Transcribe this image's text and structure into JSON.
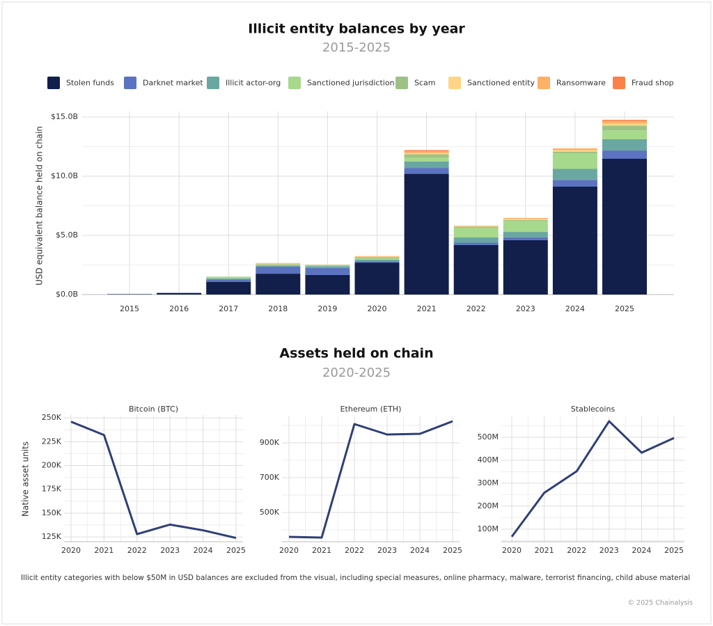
{
  "chart_data": [
    {
      "type": "bar",
      "stacked": true,
      "title": "Illicit entity balances by year",
      "subtitle": "2015-2025",
      "y_label": "USD equivalent balance held on chain",
      "categories": [
        "2015",
        "2016",
        "2017",
        "2018",
        "2019",
        "2020",
        "2021",
        "2022",
        "2023",
        "2024",
        "2025"
      ],
      "series": [
        {
          "name": "Stolen funds",
          "color": "#121f4b",
          "values": [
            0.03,
            0.12,
            1.06,
            1.76,
            1.65,
            2.7,
            10.2,
            4.18,
            4.59,
            9.12,
            11.47
          ]
        },
        {
          "name": "Darknet market",
          "color": "#5b73c0",
          "values": [
            0.01,
            0.03,
            0.2,
            0.6,
            0.6,
            0.1,
            0.5,
            0.2,
            0.25,
            0.55,
            0.7
          ]
        },
        {
          "name": "Illicit actor-org",
          "color": "#6aa7a0",
          "values": [
            0,
            0,
            0.1,
            0.1,
            0.15,
            0.15,
            0.55,
            0.45,
            0.45,
            0.95,
            0.95
          ]
        },
        {
          "name": "Sanctioned jurisdiction",
          "color": "#a6d98c",
          "values": [
            0,
            0,
            0.1,
            0.05,
            0.05,
            0.1,
            0.3,
            0.8,
            0.9,
            1.3,
            0.75
          ]
        },
        {
          "name": "Scam",
          "color": "#9cc384",
          "values": [
            0,
            0,
            0.05,
            0.05,
            0.05,
            0.1,
            0.3,
            0.1,
            0.1,
            0.15,
            0.4
          ]
        },
        {
          "name": "Sanctioned entity",
          "color": "#fdd585",
          "values": [
            0,
            0,
            0,
            0.05,
            0.03,
            0.05,
            0.1,
            0.05,
            0.1,
            0.13,
            0.2
          ]
        },
        {
          "name": "Ransomware",
          "color": "#fcb068",
          "values": [
            0,
            0,
            0,
            0.05,
            0,
            0.05,
            0.15,
            0.04,
            0.08,
            0.15,
            0.2
          ]
        },
        {
          "name": "Fraud shop",
          "color": "#fb8148",
          "values": [
            0,
            0,
            0,
            0,
            0,
            0,
            0.1,
            0,
            0,
            0,
            0.09
          ]
        }
      ],
      "ylim": [
        0,
        15
      ],
      "yticks": [
        {
          "value": 0,
          "label": "$0.0B"
        },
        {
          "value": 5,
          "label": "$5.0B"
        },
        {
          "value": 10,
          "label": "$10.0B"
        },
        {
          "value": 15,
          "label": "$15.0B"
        }
      ],
      "grid": true
    },
    {
      "type": "line",
      "title": "Assets held on chain",
      "subtitle": "2020-2025",
      "panel_title": "Bitcoin (BTC)",
      "y_label": "Native asset units",
      "color": "#2e3e78",
      "categories": [
        "2020",
        "2021",
        "2022",
        "2023",
        "2024",
        "2025"
      ],
      "values": [
        246000,
        232000,
        128000,
        138000,
        132000,
        124000
      ],
      "ylim": [
        120000,
        253000
      ],
      "yticks": [
        {
          "value": 125000,
          "label": "125K"
        },
        {
          "value": 150000,
          "label": "150K"
        },
        {
          "value": 175000,
          "label": "175K"
        },
        {
          "value": 200000,
          "label": "200K"
        },
        {
          "value": 225000,
          "label": "225K"
        },
        {
          "value": 250000,
          "label": "250K"
        }
      ],
      "grid": true
    },
    {
      "type": "line",
      "panel_title": "Ethereum (ETH)",
      "color": "#2e3e78",
      "categories": [
        "2020",
        "2021",
        "2022",
        "2023",
        "2024",
        "2025"
      ],
      "values": [
        360000,
        356000,
        1008000,
        948000,
        952000,
        1024000
      ],
      "ylim": [
        332000,
        1052000
      ],
      "yticks": [
        {
          "value": 500000,
          "label": "500K"
        },
        {
          "value": 700000,
          "label": "700K"
        },
        {
          "value": 900000,
          "label": "900K"
        }
      ],
      "grid": true
    },
    {
      "type": "line",
      "panel_title": "Stablecoins",
      "color": "#2e3e78",
      "categories": [
        "2020",
        "2021",
        "2022",
        "2023",
        "2024",
        "2025"
      ],
      "values": [
        67000000,
        258000000,
        352000000,
        570000000,
        433000000,
        497000000
      ],
      "ylim": [
        45000000,
        591000000
      ],
      "yticks": [
        {
          "value": 100000000,
          "label": "100M"
        },
        {
          "value": 200000000,
          "label": "200M"
        },
        {
          "value": 300000000,
          "label": "300M"
        },
        {
          "value": 400000000,
          "label": "400M"
        },
        {
          "value": 500000000,
          "label": "500M"
        }
      ],
      "grid": true
    }
  ],
  "footnote": "Illicit entity categories with below $50M in USD balances are excluded from the visual, including special measures, online pharmacy, malware, terrorist financing, child abuse material",
  "copyright": "© 2025 Chainalysis"
}
